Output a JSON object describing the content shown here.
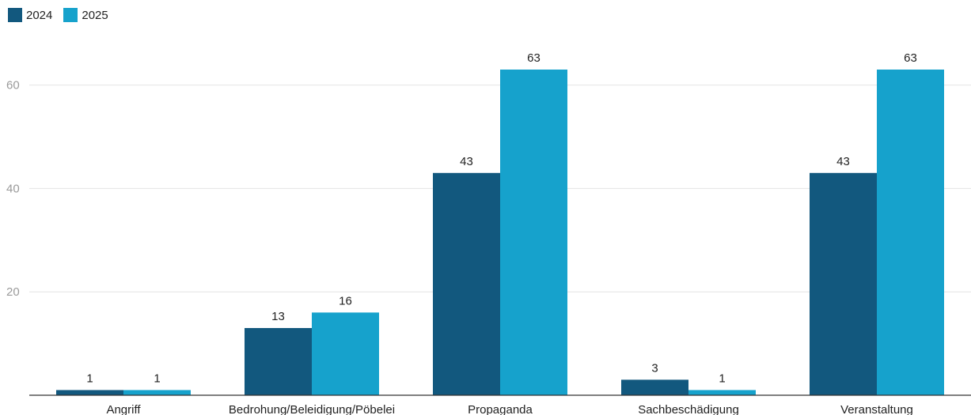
{
  "legend": {
    "items": [
      {
        "label": "2024",
        "color": "#12587e"
      },
      {
        "label": "2025",
        "color": "#16a2cc"
      }
    ]
  },
  "chart_data": {
    "type": "bar",
    "categories": [
      "Angriff",
      "Bedrohung/Beleidigung/Pöbelei",
      "Propaganda",
      "Sachbeschädigung",
      "Veranstaltung"
    ],
    "series": [
      {
        "name": "2024",
        "values": [
          1,
          13,
          43,
          3,
          43
        ],
        "color": "#12587e"
      },
      {
        "name": "2025",
        "values": [
          1,
          16,
          63,
          1,
          63
        ],
        "color": "#16a2cc"
      }
    ],
    "yticks": [
      20,
      40,
      60
    ],
    "ylim": [
      0,
      66
    ],
    "grid": true,
    "legend_position": "top-left"
  }
}
